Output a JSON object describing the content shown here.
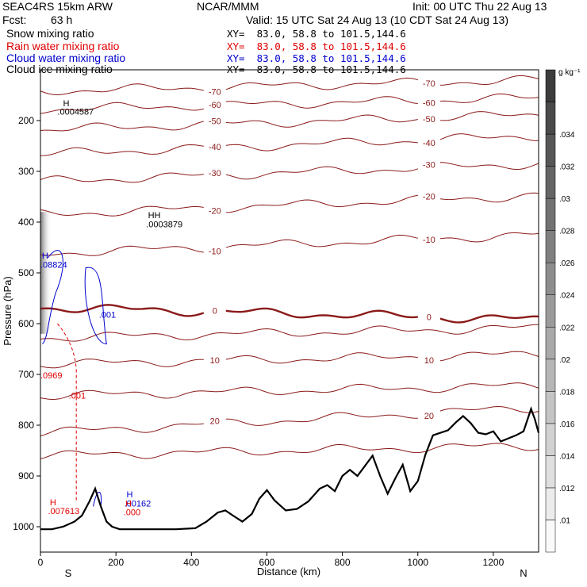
{
  "header": {
    "model": "SEAC4RS 15km ARW",
    "center": "NCAR/MMM",
    "init": "Init: 00 UTC Thu 22 Aug 13",
    "fcst_label": "Fcst:",
    "fcst_value": "63 h",
    "valid": "Valid: 15 UTC Sat 24 Aug 13 (10 CDT Sat 24 Aug 13)"
  },
  "legend": [
    {
      "name": "Snow mixing ratio",
      "xy": "XY=  83.0, 58.8 to 101.5,144.6",
      "color": "#000000"
    },
    {
      "name": "Rain water mixing ratio",
      "xy": "XY=  83.0, 58.8 to 101.5,144.6",
      "color": "#e00000"
    },
    {
      "name": "Cloud water mixing ratio",
      "xy": "XY=  83.0, 58.8 to 101.5,144.6",
      "color": "#0000cc"
    },
    {
      "name": "Cloud ice mixing ratio",
      "xy": "XY=  83.0, 58.8 to 101.5,144.6",
      "color": "#000000"
    }
  ],
  "chart_data": {
    "type": "line",
    "xlabel": "Distance (km)",
    "ylabel": "Pressure (hPa)",
    "xlim": [
      0,
      1320
    ],
    "ylim": [
      1050,
      100
    ],
    "x_ticks": [
      0,
      200,
      400,
      600,
      800,
      1000,
      1200
    ],
    "y_ticks": [
      200,
      300,
      400,
      500,
      600,
      700,
      800,
      900,
      1000
    ],
    "x_end_labels": {
      "left": "S",
      "right": "N"
    },
    "colorbar": {
      "units": "g kg⁻¹",
      "ticks": [
        ".01",
        ".012",
        ".014",
        ".016",
        ".018",
        ".02",
        ".022",
        ".024",
        ".026",
        ".028",
        ".03",
        ".032",
        ".034"
      ]
    },
    "isotherms": [
      {
        "temp_c": -70,
        "label": "-70",
        "pressure_west": 142,
        "pressure_east": 120
      },
      {
        "temp_c": -60,
        "label": "-60",
        "pressure_west": 178,
        "pressure_east": 155
      },
      {
        "temp_c": -50,
        "label": "-50",
        "pressure_west": 218,
        "pressure_east": 188
      },
      {
        "temp_c": -40,
        "label": "-40",
        "pressure_west": 266,
        "pressure_east": 230
      },
      {
        "temp_c": -30,
        "label": "-30",
        "pressure_west": 320,
        "pressure_east": 285
      },
      {
        "temp_c": -20,
        "label": "-20",
        "pressure_west": 385,
        "pressure_east": 348
      },
      {
        "temp_c": -10,
        "label": "-10",
        "pressure_west": 462,
        "pressure_east": 425
      },
      {
        "temp_c": 0,
        "label": "0",
        "pressure_west": 568,
        "pressure_east": 592
      },
      {
        "temp_c": 10,
        "label": "10",
        "pressure_west": 680,
        "pressure_east": 660
      },
      {
        "temp_c": 20,
        "label": "20",
        "pressure_west": 815,
        "pressure_east": 765
      }
    ],
    "extra_levels": [
      628,
      742,
      860
    ],
    "terrain": {
      "x": [
        0,
        30,
        60,
        90,
        110,
        130,
        145,
        160,
        175,
        190,
        210,
        240,
        300,
        360,
        410,
        440,
        470,
        490,
        510,
        535,
        560,
        580,
        600,
        620,
        650,
        680,
        710,
        740,
        760,
        780,
        800,
        820,
        840,
        860,
        880,
        900,
        920,
        940,
        960,
        980,
        1000,
        1020,
        1040,
        1060,
        1080,
        1100,
        1120,
        1140,
        1160,
        1180,
        1200,
        1220,
        1240,
        1260,
        1280,
        1300,
        1310,
        1320
      ],
      "pressure": [
        1005,
        1005,
        1000,
        990,
        978,
        950,
        925,
        960,
        990,
        1000,
        1005,
        1005,
        1005,
        1005,
        1003,
        990,
        972,
        968,
        978,
        990,
        975,
        945,
        928,
        948,
        968,
        965,
        950,
        925,
        918,
        930,
        900,
        888,
        900,
        880,
        860,
        900,
        935,
        905,
        878,
        930,
        910,
        858,
        820,
        815,
        810,
        795,
        782,
        796,
        815,
        818,
        812,
        832,
        826,
        820,
        812,
        768,
        788,
        815
      ]
    },
    "contour_labels": [
      {
        "text": "H",
        "x": 60,
        "p": 172,
        "color": "#000000"
      },
      {
        "text": ".0004587",
        "x": 45,
        "p": 188,
        "color": "#000000"
      },
      {
        "text": "HH",
        "x": 285,
        "p": 392,
        "color": "#000000"
      },
      {
        "text": ".0003879",
        "x": 280,
        "p": 410,
        "color": "#000000"
      },
      {
        "text": "H",
        "x": 4,
        "p": 472,
        "color": "#0000cc"
      },
      {
        "text": ".08824",
        "x": 0,
        "p": 490,
        "color": "#0000cc"
      },
      {
        "text": ".001",
        "x": 155,
        "p": 588,
        "color": "#0000cc"
      },
      {
        "text": ".0969",
        "x": 0,
        "p": 708,
        "color": "#e00000"
      },
      {
        "text": ".001",
        "x": 75,
        "p": 748,
        "color": "#e00000"
      },
      {
        "text": "H",
        "x": 25,
        "p": 958,
        "color": "#e00000"
      },
      {
        "text": ".007613",
        "x": 20,
        "p": 975,
        "color": "#e00000"
      },
      {
        "text": "H",
        "x": 228,
        "p": 942,
        "color": "#0000cc"
      },
      {
        "text": ".00162",
        "x": 222,
        "p": 960,
        "color": "#0000cc"
      },
      {
        "text": "H",
        "x": 225,
        "p": 960,
        "color": "#e00000"
      },
      {
        "text": ".000",
        "x": 220,
        "p": 977,
        "color": "#e00000"
      }
    ]
  }
}
